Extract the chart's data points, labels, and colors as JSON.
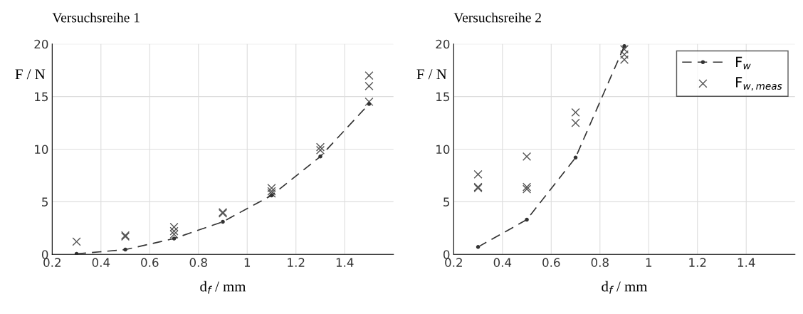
{
  "chart_data": [
    {
      "type": "scatter",
      "title": "Versuchsreihe 1",
      "xlabel": "d$_{f}$ / mm",
      "ylabel": "F / N",
      "xlim": [
        0.2,
        1.6
      ],
      "xticks": [
        0.2,
        0.4,
        0.6,
        0.8,
        1,
        1.2,
        1.4
      ],
      "ylim": [
        0,
        20
      ],
      "yticks": [
        0,
        5,
        10,
        15,
        20
      ],
      "grid": true,
      "legend": false,
      "series": [
        {
          "type": "line",
          "color": "#333333",
          "marker": "circle",
          "line_style": "dashed",
          "x": [
            0.3,
            0.5,
            0.7,
            0.9,
            1.1,
            1.3,
            1.5
          ],
          "values": [
            0.05,
            0.45,
            1.5,
            3.1,
            5.6,
            9.3,
            14.3
          ]
        },
        {
          "color": "#555555",
          "marker": "cross",
          "x": [
            0.3,
            0.5,
            0.5,
            0.7,
            0.7,
            0.7,
            0.9,
            0.9,
            1.1,
            1.1,
            1.1,
            1.3,
            1.3,
            1.5,
            1.5,
            1.5
          ],
          "values": [
            1.2,
            1.7,
            1.8,
            2.6,
            2.2,
            1.9,
            4.0,
            3.9,
            6.3,
            6.0,
            5.8,
            10.2,
            9.9,
            17.0,
            16.0,
            14.5
          ]
        }
      ]
    },
    {
      "type": "scatter",
      "title": "Versuchsreihe 2",
      "xlabel": "d$_{f}$ / mm",
      "ylabel": "F / N",
      "xlim": [
        0.2,
        1.6
      ],
      "xticks": [
        0.2,
        0.4,
        0.6,
        0.8,
        1,
        1.2,
        1.4
      ],
      "ylim": [
        0,
        20
      ],
      "yticks": [
        0,
        5,
        10,
        15,
        20
      ],
      "grid": true,
      "legend": "top right",
      "series": [
        {
          "type": "line",
          "name": "F$_{w}$",
          "color": "#333333",
          "marker": "circle",
          "line_style": "dashed",
          "x": [
            0.3,
            0.5,
            0.7,
            0.9
          ],
          "values": [
            0.7,
            3.3,
            9.2,
            19.8
          ]
        },
        {
          "name": "F$_{w,meas}$",
          "color": "#555555",
          "marker": "cross",
          "x": [
            0.3,
            0.3,
            0.3,
            0.5,
            0.5,
            0.5,
            0.7,
            0.7,
            0.9,
            0.9,
            0.9
          ],
          "values": [
            7.6,
            6.3,
            6.4,
            9.3,
            6.4,
            6.2,
            13.5,
            12.5,
            19.5,
            19.0,
            18.5
          ]
        }
      ]
    }
  ]
}
